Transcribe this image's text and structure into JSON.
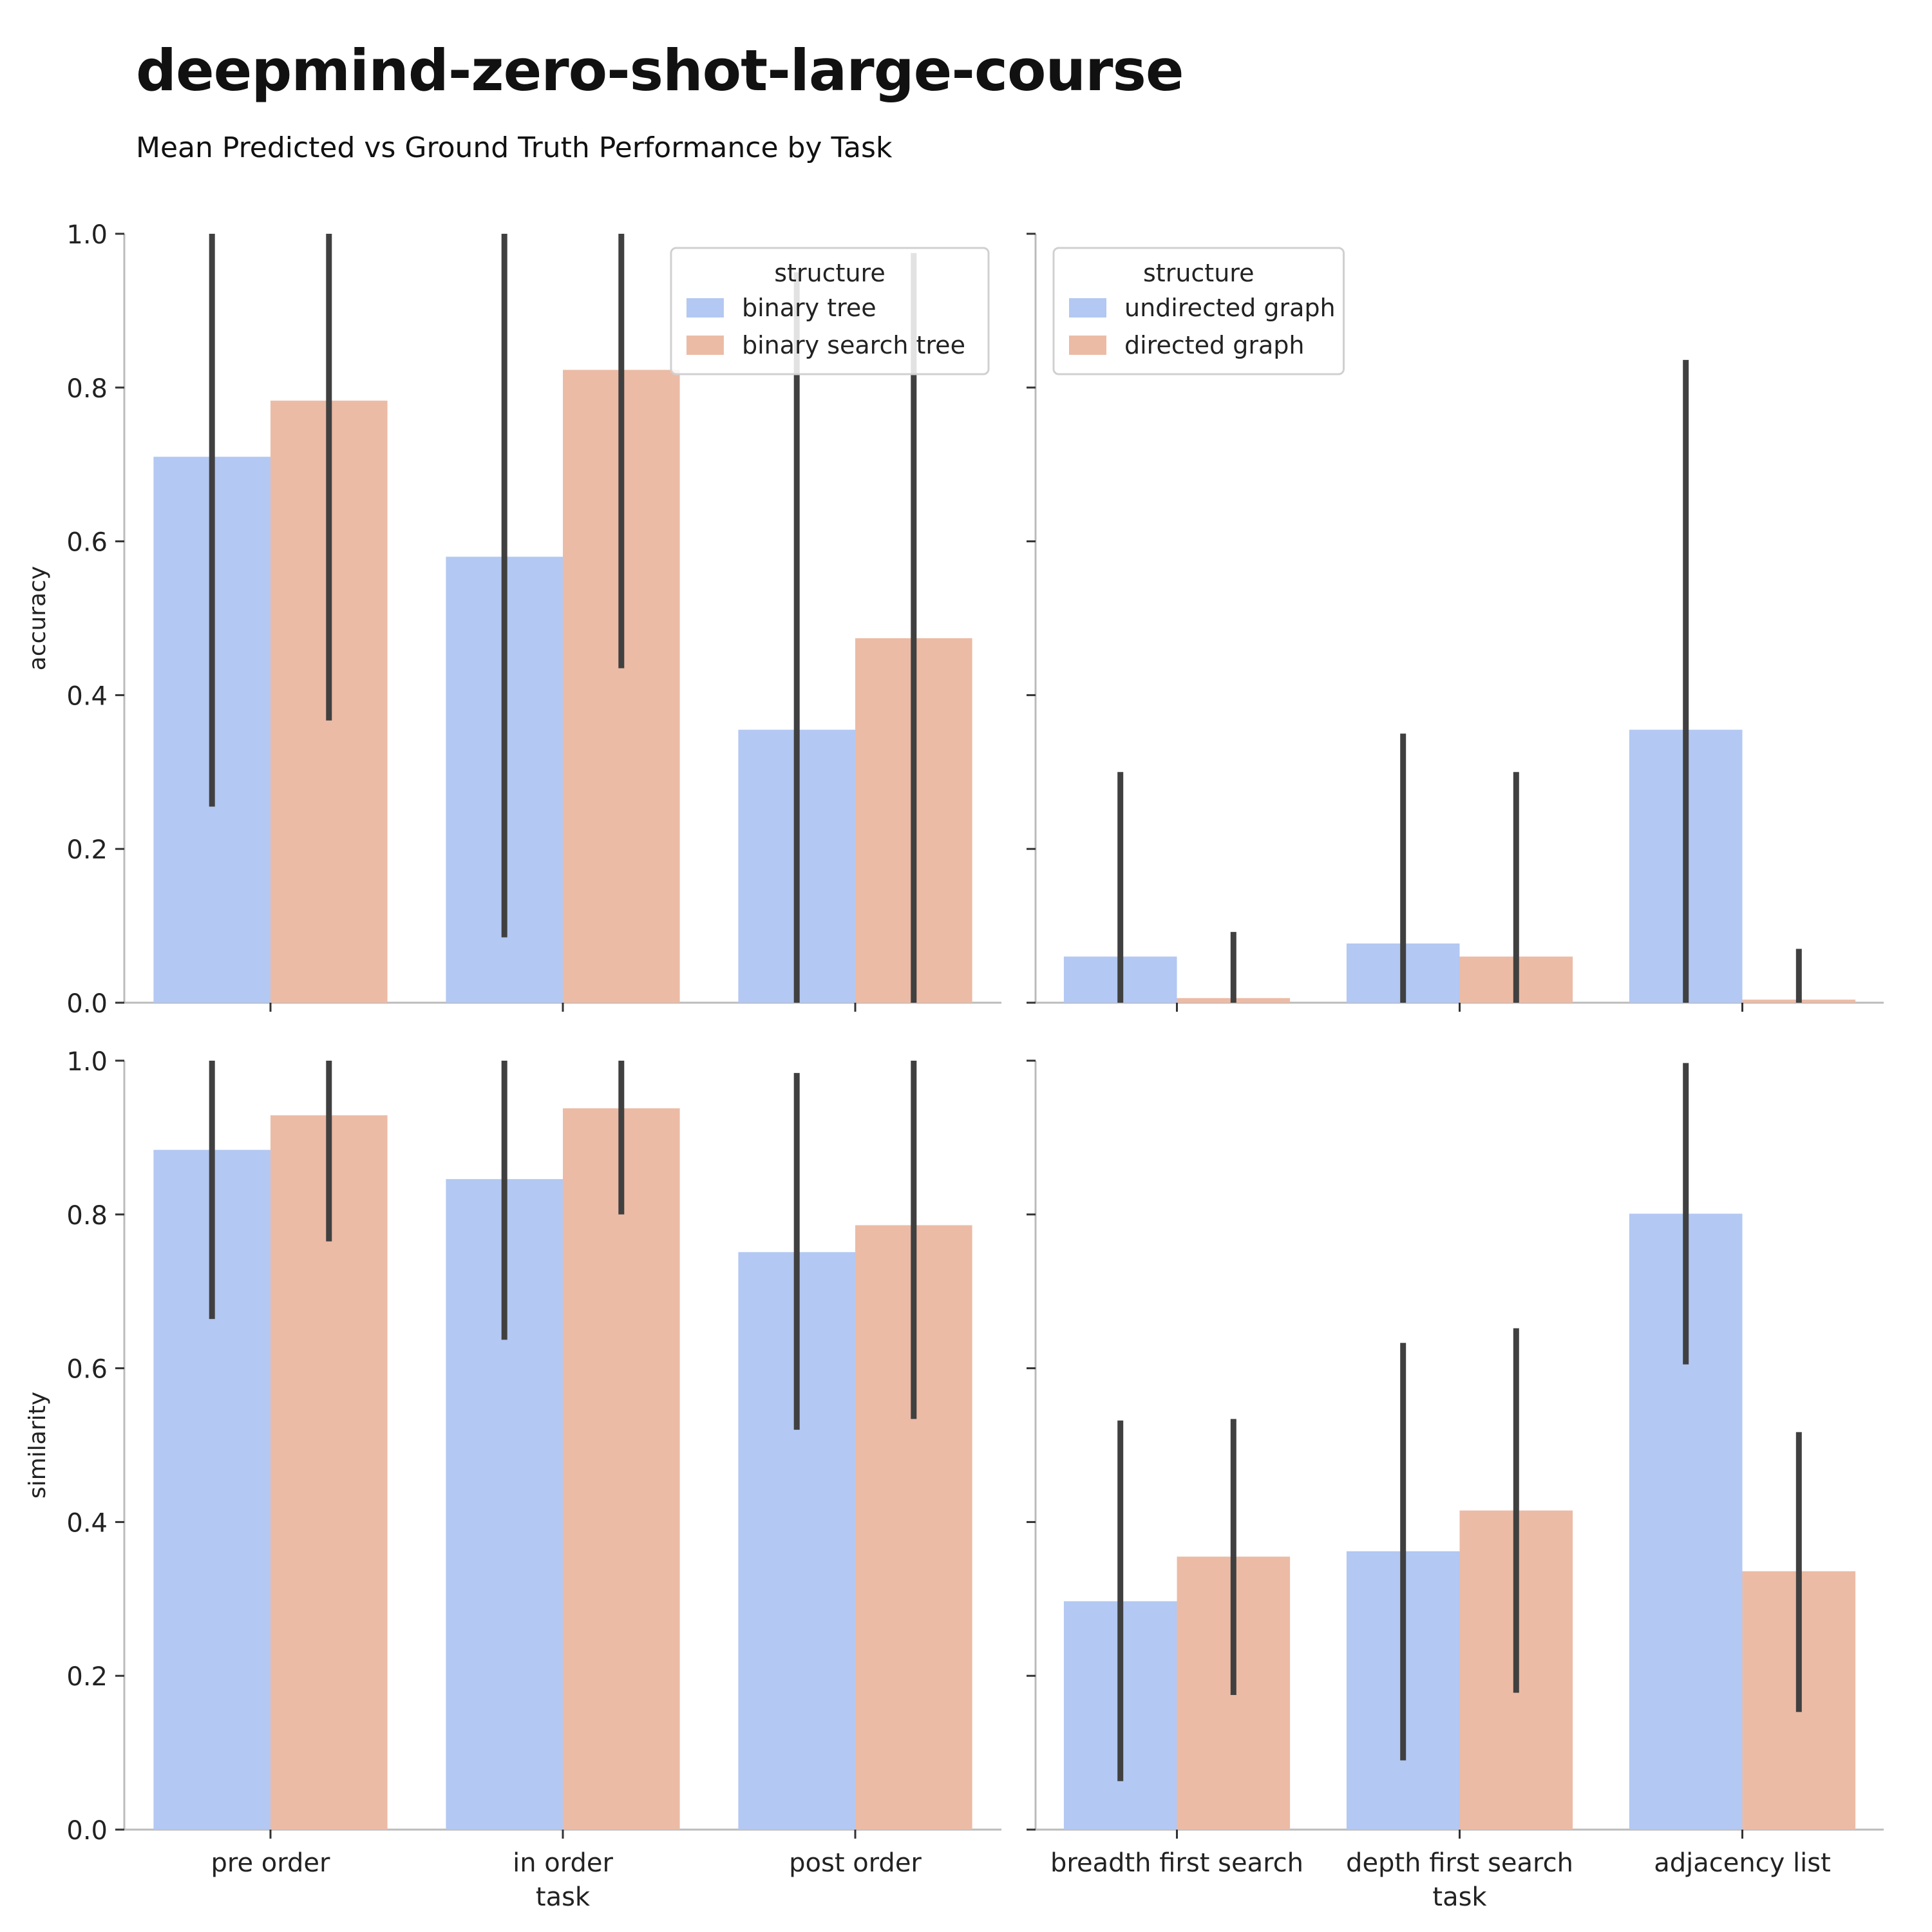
{
  "title": "deepmind-zero-shot-large-course",
  "subtitle": "Mean Predicted vs Ground Truth Performance by Task",
  "colors": {
    "series_a": "#b3c8f2",
    "series_b": "#ecbba5",
    "error_bar": "#404040",
    "axis": "#bbbbbb"
  },
  "chart_data": [
    {
      "type": "bar",
      "panel": "top-left",
      "ylabel": "accuracy",
      "xlabel": "",
      "ylim": [
        0,
        1
      ],
      "yticks": [
        "0.0",
        "0.2",
        "0.4",
        "0.6",
        "0.8",
        "1.0"
      ],
      "show_ytick_labels": true,
      "categories": [
        "pre order",
        "in order",
        "post order"
      ],
      "show_xtick_labels": false,
      "legend": {
        "title": "structure",
        "placement": "upper-right"
      },
      "series": [
        {
          "name": "binary tree",
          "values": [
            0.71,
            0.58,
            0.355
          ],
          "err_low": [
            0.255,
            0.085,
            0.0
          ],
          "err_high": [
            1.0,
            1.0,
            0.95
          ]
        },
        {
          "name": "binary search tree",
          "values": [
            0.783,
            0.823,
            0.474
          ],
          "err_low": [
            0.367,
            0.435,
            0.0
          ],
          "err_high": [
            1.0,
            1.0,
            0.975
          ]
        }
      ]
    },
    {
      "type": "bar",
      "panel": "top-right",
      "ylabel": "",
      "xlabel": "",
      "ylim": [
        0,
        1
      ],
      "yticks": [
        "0.0",
        "0.2",
        "0.4",
        "0.6",
        "0.8",
        "1.0"
      ],
      "show_ytick_labels": false,
      "categories": [
        "breadth first search",
        "depth first search",
        "adjacency list"
      ],
      "show_xtick_labels": false,
      "legend": {
        "title": "structure",
        "placement": "upper-left"
      },
      "series": [
        {
          "name": "undirected graph",
          "values": [
            0.06,
            0.077,
            0.355
          ],
          "err_low": [
            0.0,
            0.0,
            0.0
          ],
          "err_high": [
            0.3,
            0.35,
            0.836
          ]
        },
        {
          "name": "directed graph",
          "values": [
            0.006,
            0.06,
            0.004
          ],
          "err_low": [
            0.0,
            0.0,
            0.0
          ],
          "err_high": [
            0.092,
            0.3,
            0.07
          ]
        }
      ]
    },
    {
      "type": "bar",
      "panel": "bottom-left",
      "ylabel": "similarity",
      "xlabel": "task",
      "ylim": [
        0,
        1
      ],
      "yticks": [
        "0.0",
        "0.2",
        "0.4",
        "0.6",
        "0.8",
        "1.0"
      ],
      "show_ytick_labels": true,
      "categories": [
        "pre order",
        "in order",
        "post order"
      ],
      "show_xtick_labels": true,
      "series": [
        {
          "values": [
            0.884,
            0.846,
            0.751
          ],
          "err_low": [
            0.664,
            0.637,
            0.52
          ],
          "err_high": [
            1.0,
            1.0,
            0.984
          ]
        },
        {
          "values": [
            0.929,
            0.938,
            0.786
          ],
          "err_low": [
            0.765,
            0.8,
            0.534
          ],
          "err_high": [
            1.0,
            1.0,
            1.0
          ]
        }
      ]
    },
    {
      "type": "bar",
      "panel": "bottom-right",
      "ylabel": "",
      "xlabel": "task",
      "ylim": [
        0,
        1
      ],
      "yticks": [
        "0.0",
        "0.2",
        "0.4",
        "0.6",
        "0.8",
        "1.0"
      ],
      "show_ytick_labels": false,
      "categories": [
        "breadth first search",
        "depth first search",
        "adjacency list"
      ],
      "show_xtick_labels": true,
      "series": [
        {
          "values": [
            0.297,
            0.362,
            0.801
          ],
          "err_low": [
            0.063,
            0.09,
            0.605
          ],
          "err_high": [
            0.532,
            0.633,
            0.997
          ]
        },
        {
          "values": [
            0.355,
            0.415,
            0.336
          ],
          "err_low": [
            0.175,
            0.178,
            0.153
          ],
          "err_high": [
            0.534,
            0.652,
            0.517
          ]
        }
      ]
    }
  ]
}
